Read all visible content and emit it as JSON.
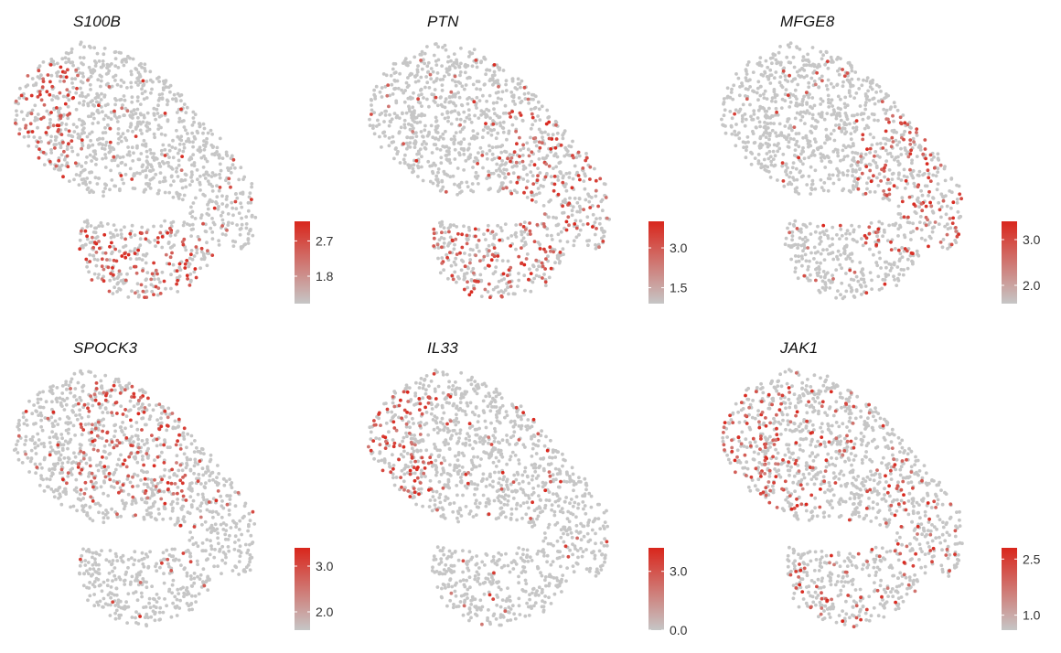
{
  "colors": {
    "low": "#c6c6c6",
    "high": "#d9261c",
    "background": "#ffffff"
  },
  "chart_data": [
    {
      "type": "scatter",
      "title": "S100B",
      "gradient": [
        "#c6c6c6",
        "#d9261c"
      ],
      "legend": {
        "position": "right",
        "min": 1.1,
        "max": 3.2,
        "ticks": [
          1.8,
          2.7
        ],
        "tick_labels": [
          "1.8",
          "2.7"
        ]
      },
      "hot_regions": [
        "bottom-lobe",
        "left-edge"
      ]
    },
    {
      "type": "scatter",
      "title": "PTN",
      "gradient": [
        "#c6c6c6",
        "#d9261c"
      ],
      "legend": {
        "position": "right",
        "min": 0.9,
        "max": 4.0,
        "ticks": [
          1.5,
          3.0
        ],
        "tick_labels": [
          "1.5",
          "3.0"
        ]
      },
      "hot_regions": [
        "bottom-lobe",
        "right-body"
      ]
    },
    {
      "type": "scatter",
      "title": "MFGE8",
      "gradient": [
        "#c6c6c6",
        "#d9261c"
      ],
      "legend": {
        "position": "right",
        "min": 1.6,
        "max": 3.4,
        "ticks": [
          2.0,
          3.0
        ],
        "tick_labels": [
          "2.0",
          "3.0"
        ]
      },
      "hot_regions": [
        "right-body"
      ]
    },
    {
      "type": "scatter",
      "title": "SPOCK3",
      "gradient": [
        "#c6c6c6",
        "#d9261c"
      ],
      "legend": {
        "position": "right",
        "min": 1.6,
        "max": 3.4,
        "ticks": [
          2.0,
          3.0
        ],
        "tick_labels": [
          "2.0",
          "3.0"
        ]
      },
      "hot_regions": [
        "upper-middle"
      ]
    },
    {
      "type": "scatter",
      "title": "IL33",
      "gradient": [
        "#c6c6c6",
        "#d9261c"
      ],
      "legend": {
        "position": "right",
        "min": 0.0,
        "max": 4.2,
        "ticks": [
          0.0,
          3.0
        ],
        "tick_labels": [
          "0.0",
          "3.0"
        ]
      },
      "hot_regions": [
        "left-edge"
      ]
    },
    {
      "type": "scatter",
      "title": "JAK1",
      "gradient": [
        "#c6c6c6",
        "#d9261c"
      ],
      "legend": {
        "position": "right",
        "min": 0.6,
        "max": 2.8,
        "ticks": [
          1.0,
          2.5
        ],
        "tick_labels": [
          "1.0",
          "2.5"
        ]
      },
      "hot_regions": [
        "left-edge",
        "scattered"
      ]
    }
  ]
}
